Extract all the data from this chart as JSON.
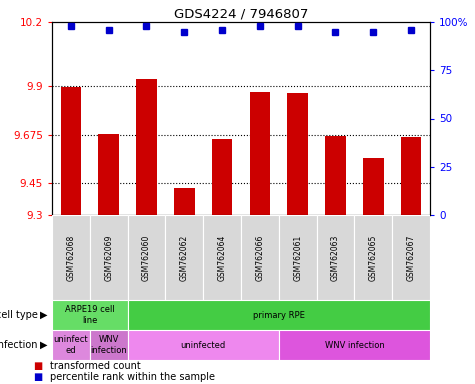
{
  "title": "GDS4224 / 7946807",
  "samples": [
    "GSM762068",
    "GSM762069",
    "GSM762060",
    "GSM762062",
    "GSM762064",
    "GSM762066",
    "GSM762061",
    "GSM762063",
    "GSM762065",
    "GSM762067"
  ],
  "bar_values": [
    9.895,
    9.68,
    9.935,
    9.425,
    9.655,
    9.875,
    9.87,
    9.67,
    9.565,
    9.665
  ],
  "dot_values": [
    98,
    96,
    98,
    95,
    96,
    98,
    98,
    95,
    95,
    96
  ],
  "y_min": 9.3,
  "y_max": 10.2,
  "y_ticks_left": [
    9.3,
    9.45,
    9.675,
    9.9,
    10.2
  ],
  "y_ticks_right": [
    0,
    25,
    50,
    75,
    100
  ],
  "bar_color": "#cc0000",
  "dot_color": "#0000cc",
  "cell_type_groups": [
    {
      "text": "ARPE19 cell\nline",
      "start": 0,
      "end": 2,
      "color": "#66dd66"
    },
    {
      "text": "primary RPE",
      "start": 2,
      "end": 10,
      "color": "#44cc44"
    }
  ],
  "infection_groups": [
    {
      "text": "uninfect\ned",
      "start": 0,
      "end": 1,
      "color": "#dd88dd"
    },
    {
      "text": "WNV\ninfection",
      "start": 1,
      "end": 2,
      "color": "#cc77cc"
    },
    {
      "text": "uninfected",
      "start": 2,
      "end": 6,
      "color": "#ee88ee"
    },
    {
      "text": "WNV infection",
      "start": 6,
      "end": 10,
      "color": "#dd55dd"
    }
  ],
  "legend_items": [
    {
      "label": "transformed count",
      "color": "#cc0000"
    },
    {
      "label": "percentile rank within the sample",
      "color": "#0000cc"
    }
  ],
  "cell_type_label": "cell type",
  "infection_label": "infection"
}
